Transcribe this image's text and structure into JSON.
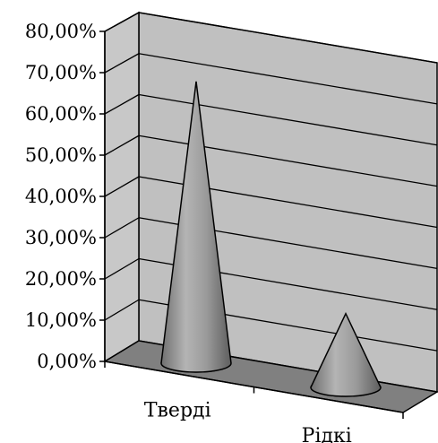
{
  "chart_data": {
    "type": "bar",
    "bar_shape": "cone",
    "view": "3d",
    "categories": [
      "Тверді",
      "Рідкі"
    ],
    "values": [
      71.5,
      18.5
    ],
    "ylim": [
      0,
      80
    ],
    "yticks": [
      0,
      10,
      20,
      30,
      40,
      50,
      60,
      70,
      80
    ],
    "ytick_labels": [
      "0,00%",
      "10,00%",
      "20,00%",
      "30,00%",
      "40,00%",
      "50,00%",
      "60,00%",
      "70,00%",
      "80,00%"
    ],
    "grid": true,
    "legend": "none",
    "colors": {
      "back_wall": "#c0c0c0",
      "floor": "#808080",
      "cone": "#9a9a9a",
      "grid": "#000000"
    }
  }
}
